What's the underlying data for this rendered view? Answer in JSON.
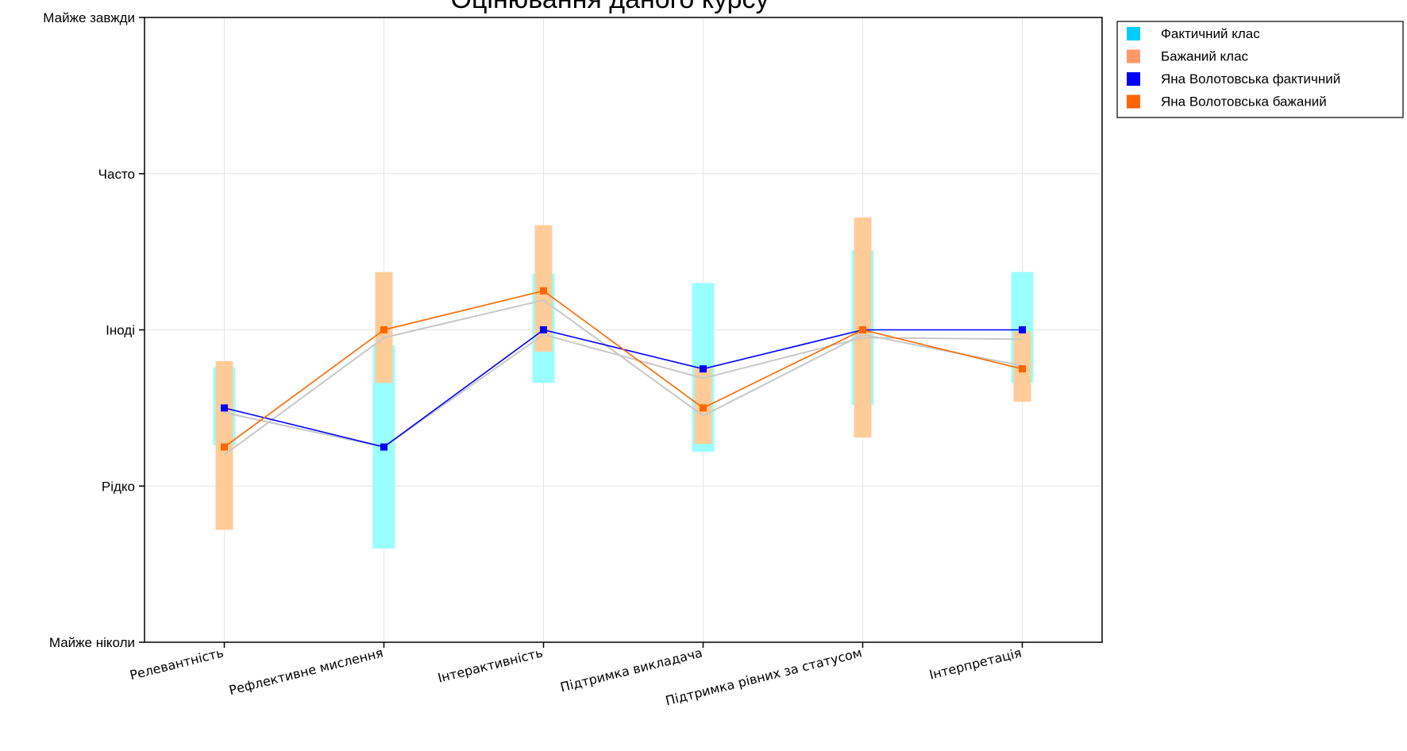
{
  "chart_data": {
    "type": "line",
    "title": "Оцінювання даного курсу",
    "xlabel": "",
    "ylabel": "",
    "ylim": [
      1,
      5
    ],
    "y_ticks": [
      {
        "value": 1,
        "label": "Майже ніколи"
      },
      {
        "value": 2,
        "label": "Рідко"
      },
      {
        "value": 3,
        "label": "Іноді"
      },
      {
        "value": 4,
        "label": "Часто"
      },
      {
        "value": 5,
        "label": "Майже завжди"
      }
    ],
    "categories": [
      "Релевантність",
      "Рефлективне мислення",
      "Інтерактивність",
      "Підтримка викладача",
      "Підтримка рівних за статусом",
      "Інтерпретація"
    ],
    "grid": true,
    "legend_position": "top-right outside",
    "bands": [
      {
        "name": "Фактичний клас",
        "color": "#99ffff",
        "legend_color": "#00ccff",
        "ranges": [
          [
            2.26,
            2.76
          ],
          [
            1.6,
            2.9
          ],
          [
            2.66,
            3.36
          ],
          [
            2.22,
            3.3
          ],
          [
            2.52,
            3.51
          ],
          [
            2.66,
            3.37
          ]
        ]
      },
      {
        "name": "Бажаний клас",
        "color": "#ffcc99",
        "legend_color": "#ff9966",
        "ranges": [
          [
            1.72,
            2.8
          ],
          [
            2.66,
            3.37
          ],
          [
            2.86,
            3.67
          ],
          [
            2.27,
            2.76
          ],
          [
            2.31,
            3.72
          ],
          [
            2.54,
            2.99
          ]
        ]
      }
    ],
    "series": [
      {
        "name": "Яна Волотовська фактичний",
        "color": "#0000ff",
        "values": [
          2.5,
          2.25,
          3.0,
          2.75,
          3.0,
          3.0
        ]
      },
      {
        "name": "Яна Волотовська бажаний",
        "color": "#ff6600",
        "values": [
          2.25,
          3.0,
          3.25,
          2.5,
          3.0,
          2.75
        ]
      }
    ],
    "average_lines": [
      {
        "values": [
          2.47,
          2.25,
          2.97,
          2.69,
          2.95,
          2.94
        ]
      },
      {
        "values": [
          2.2,
          2.95,
          3.19,
          2.45,
          2.97,
          2.77
        ]
      }
    ]
  }
}
